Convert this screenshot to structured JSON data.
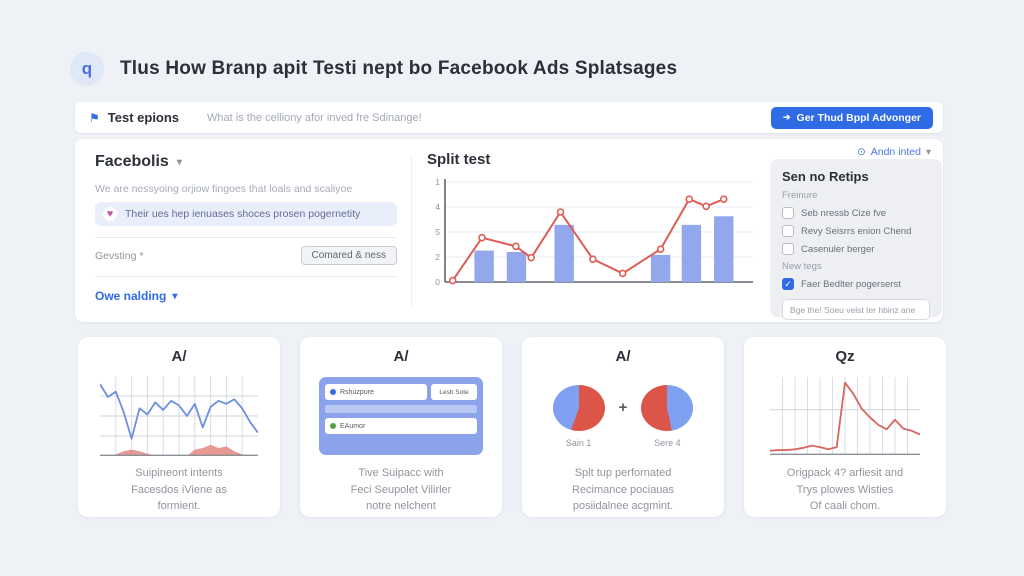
{
  "icons": {
    "search": "q",
    "flag": "⚑",
    "cta_arrow": "➔",
    "gear": "⊙",
    "chevron": "▾",
    "heart": "♥",
    "check": "✓"
  },
  "header": {
    "title": "Tlus How Branp apit Testi nept bo Facebook Ads Splatsages"
  },
  "toolbar": {
    "label": "Test epions",
    "hint": "What is the celliony afor inved fre Sdinange!",
    "cta": "Ger Thud Bppl Advonger"
  },
  "panel": {
    "top_link": "Andn inted",
    "left": {
      "heading": "Facebolis",
      "desc": "We are nessyoing orjiow fingoes that loals and scaliyoe",
      "highlight": "Their ues hep ienuases shoces prosen pogernetity",
      "field_label": "Gevsting *",
      "field_button": "Comared & ness",
      "link": "Owe nalding"
    },
    "chart_title": "Split test",
    "right": {
      "title": "Sen no Retips",
      "group1": "Freinure",
      "checkboxes": [
        {
          "label": "Seb nressb Cize fve",
          "checked": false
        },
        {
          "label": "Revy Seisrrs enion Chend",
          "checked": false
        },
        {
          "label": "Casenuler berger",
          "checked": false
        }
      ],
      "group2": "New tegs",
      "checked_item": "Faer Bedlter pogerserst",
      "input_text": "Bge the! Soeu velst ter hbinz ane"
    }
  },
  "cards": [
    {
      "title": "A/",
      "caption": [
        "Suipineont intents",
        "Facesdos iViene as",
        "formient."
      ]
    },
    {
      "title": "A/",
      "mock": {
        "row1": "Rshuzpure",
        "row1_btn": "Lesb Sote",
        "row2": "EAumor"
      },
      "caption": [
        "Tive Suipacc with",
        "Feci Seupolet Vilirler",
        "notre nelchent"
      ]
    },
    {
      "title": "A/",
      "plus": "+",
      "caption": [
        "Splt tup perfornated",
        "Recimance pociauas",
        "posiidalnee acgmint."
      ]
    },
    {
      "title": "Qz",
      "caption": [
        "Origpack 4? arfiesit and",
        "Trys plowes Wisties",
        "Of caali chom."
      ]
    }
  ],
  "chart_data": [
    {
      "id": "split-test",
      "type": "bar",
      "subtype": "bar+line combo",
      "title": "Split test",
      "ylim": [
        0,
        7
      ],
      "grid": true,
      "yticks": [
        {
          "label": "1",
          "value": 7
        },
        {
          "label": "4",
          "value": 5.25
        },
        {
          "label": "5",
          "value": 3.5
        },
        {
          "label": "2",
          "value": 1.75
        },
        {
          "label": "0",
          "value": 0
        }
      ],
      "bar_color": "#92a7ec",
      "line_color": "#dd5c55",
      "bar_width_frac": 0.063,
      "bars": [
        {
          "x": 0.127,
          "value": 2.2
        },
        {
          "x": 0.232,
          "value": 2.1
        },
        {
          "x": 0.387,
          "value": 4.0
        },
        {
          "x": 0.7,
          "value": 1.9
        },
        {
          "x": 0.8,
          "value": 4.0
        },
        {
          "x": 0.905,
          "value": 4.6
        }
      ],
      "line": [
        {
          "x": 0.025,
          "value": 0.1
        },
        {
          "x": 0.12,
          "value": 3.1
        },
        {
          "x": 0.23,
          "value": 2.5
        },
        {
          "x": 0.28,
          "value": 1.7
        },
        {
          "x": 0.375,
          "value": 4.9
        },
        {
          "x": 0.48,
          "value": 1.6
        },
        {
          "x": 0.577,
          "value": 0.6
        },
        {
          "x": 0.7,
          "value": 2.3
        },
        {
          "x": 0.793,
          "value": 5.8
        },
        {
          "x": 0.848,
          "value": 5.3
        },
        {
          "x": 0.905,
          "value": 5.8
        }
      ]
    },
    {
      "id": "card1-spark",
      "type": "line",
      "subtype": "line+area sparkline",
      "line_color": "#6e8fe0",
      "area_color": "#e08880",
      "vgrid": 10,
      "hgrid": [
        0.25,
        0.5,
        0.75
      ],
      "line_values": [
        0.92,
        0.75,
        0.82,
        0.55,
        0.2,
        0.6,
        0.52,
        0.68,
        0.58,
        0.7,
        0.64,
        0.5,
        0.66,
        0.35,
        0.62,
        0.7,
        0.66,
        0.72,
        0.6,
        0.42,
        0.28
      ],
      "area_values": [
        0,
        0,
        0.02,
        0.06,
        0.08,
        0.06,
        0.03,
        0,
        0,
        0,
        0,
        0,
        0.08,
        0.1,
        0.14,
        0.1,
        0.12,
        0.06,
        0.02,
        0,
        0
      ]
    },
    {
      "id": "card4-spark",
      "type": "line",
      "subtype": "line sparkline",
      "line_color": "#d9655e",
      "vgrid": 12,
      "hgrid": [
        0.42
      ],
      "line_values": [
        0.03,
        0.04,
        0.04,
        0.05,
        0.07,
        0.1,
        0.08,
        0.05,
        0.08,
        0.95,
        0.8,
        0.6,
        0.48,
        0.38,
        0.32,
        0.45,
        0.33,
        0.3,
        0.25
      ]
    },
    {
      "id": "pie-1",
      "type": "pie",
      "label": "Sain 1",
      "slices": [
        {
          "name": "red",
          "color": "#dd5449",
          "from": 0,
          "to": 200
        },
        {
          "name": "blue",
          "color": "#7f9ff0",
          "from": 200,
          "to": 360
        }
      ]
    },
    {
      "id": "pie-2",
      "type": "pie",
      "label": "Sere 4",
      "slices": [
        {
          "name": "blue",
          "color": "#7f9ff0",
          "from": 0,
          "to": 168
        },
        {
          "name": "red",
          "color": "#dd5449",
          "from": 168,
          "to": 360
        }
      ]
    }
  ]
}
